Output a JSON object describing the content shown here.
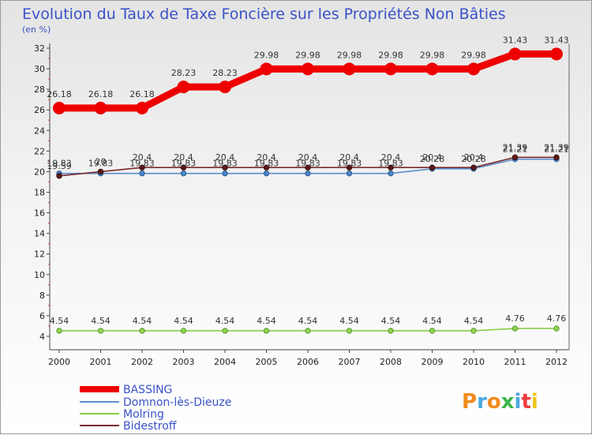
{
  "chart_data": {
    "type": "line",
    "title": "Evolution du Taux de Taxe Foncière sur les Propriétés Non Bâties",
    "unit_label": "(en %)",
    "xlabel": "",
    "ylabel": "(en %)",
    "x": [
      "2000",
      "2001",
      "2002",
      "2003",
      "2004",
      "2005",
      "2006",
      "2007",
      "2008",
      "2009",
      "2010",
      "2011",
      "2012"
    ],
    "ylim": [
      4,
      32
    ],
    "yticks": [
      4,
      6,
      8,
      10,
      12,
      14,
      16,
      18,
      20,
      22,
      24,
      26,
      28,
      30,
      32
    ],
    "grid": false,
    "legend_position": "bottom-left",
    "series": [
      {
        "name": "BASSING",
        "color": "#ee0000",
        "values": [
          26.18,
          26.18,
          26.18,
          28.23,
          28.23,
          29.98,
          29.98,
          29.98,
          29.98,
          29.98,
          29.98,
          31.43,
          31.43
        ],
        "labels": [
          "26.18",
          "26.18",
          "26.18",
          "28.23",
          "28.23",
          "29.98",
          "29.98",
          "29.98",
          "29.98",
          "29.98",
          "29.98",
          "31.43",
          "31.43"
        ]
      },
      {
        "name": "Domnon-lès-Dieuze",
        "color": "#5b8fcc",
        "values": [
          19.83,
          19.83,
          19.83,
          19.83,
          19.83,
          19.83,
          19.83,
          19.83,
          19.83,
          20.28,
          20.28,
          21.21,
          21.21
        ],
        "labels": [
          "19.83",
          "19.83",
          "19.83",
          "19.83",
          "19.83",
          "19.83",
          "19.83",
          "19.83",
          "19.83",
          "20.28",
          "20.28",
          "21.21",
          "21.21"
        ]
      },
      {
        "name": "Molring",
        "color": "#88cc44",
        "values": [
          4.54,
          4.54,
          4.54,
          4.54,
          4.54,
          4.54,
          4.54,
          4.54,
          4.54,
          4.54,
          4.54,
          4.76,
          4.76
        ],
        "labels": [
          "4.54",
          "4.54",
          "4.54",
          "4.54",
          "4.54",
          "4.54",
          "4.54",
          "4.54",
          "4.54",
          "4.54",
          "4.54",
          "4.76",
          "4.76"
        ]
      },
      {
        "name": "Bidestroff",
        "color": "#7a2a2a",
        "values": [
          19.59,
          20.0,
          20.4,
          20.4,
          20.4,
          20.4,
          20.4,
          20.4,
          20.4,
          20.4,
          20.4,
          21.39,
          21.39
        ],
        "labels": [
          "19.59",
          "20",
          "20.4",
          "20.4",
          "20.4",
          "20.4",
          "20.4",
          "20.4",
          "20.4",
          "20.4",
          "20.4",
          "21.39",
          "21.39"
        ]
      }
    ]
  },
  "logo": {
    "text": "Proxiti",
    "letter_colors": [
      "#f08a1c",
      "#4aa8e0",
      "#f08a1c",
      "#3cb44a",
      "#4aa8e0",
      "#ee3b3b",
      "#f0c419"
    ]
  }
}
